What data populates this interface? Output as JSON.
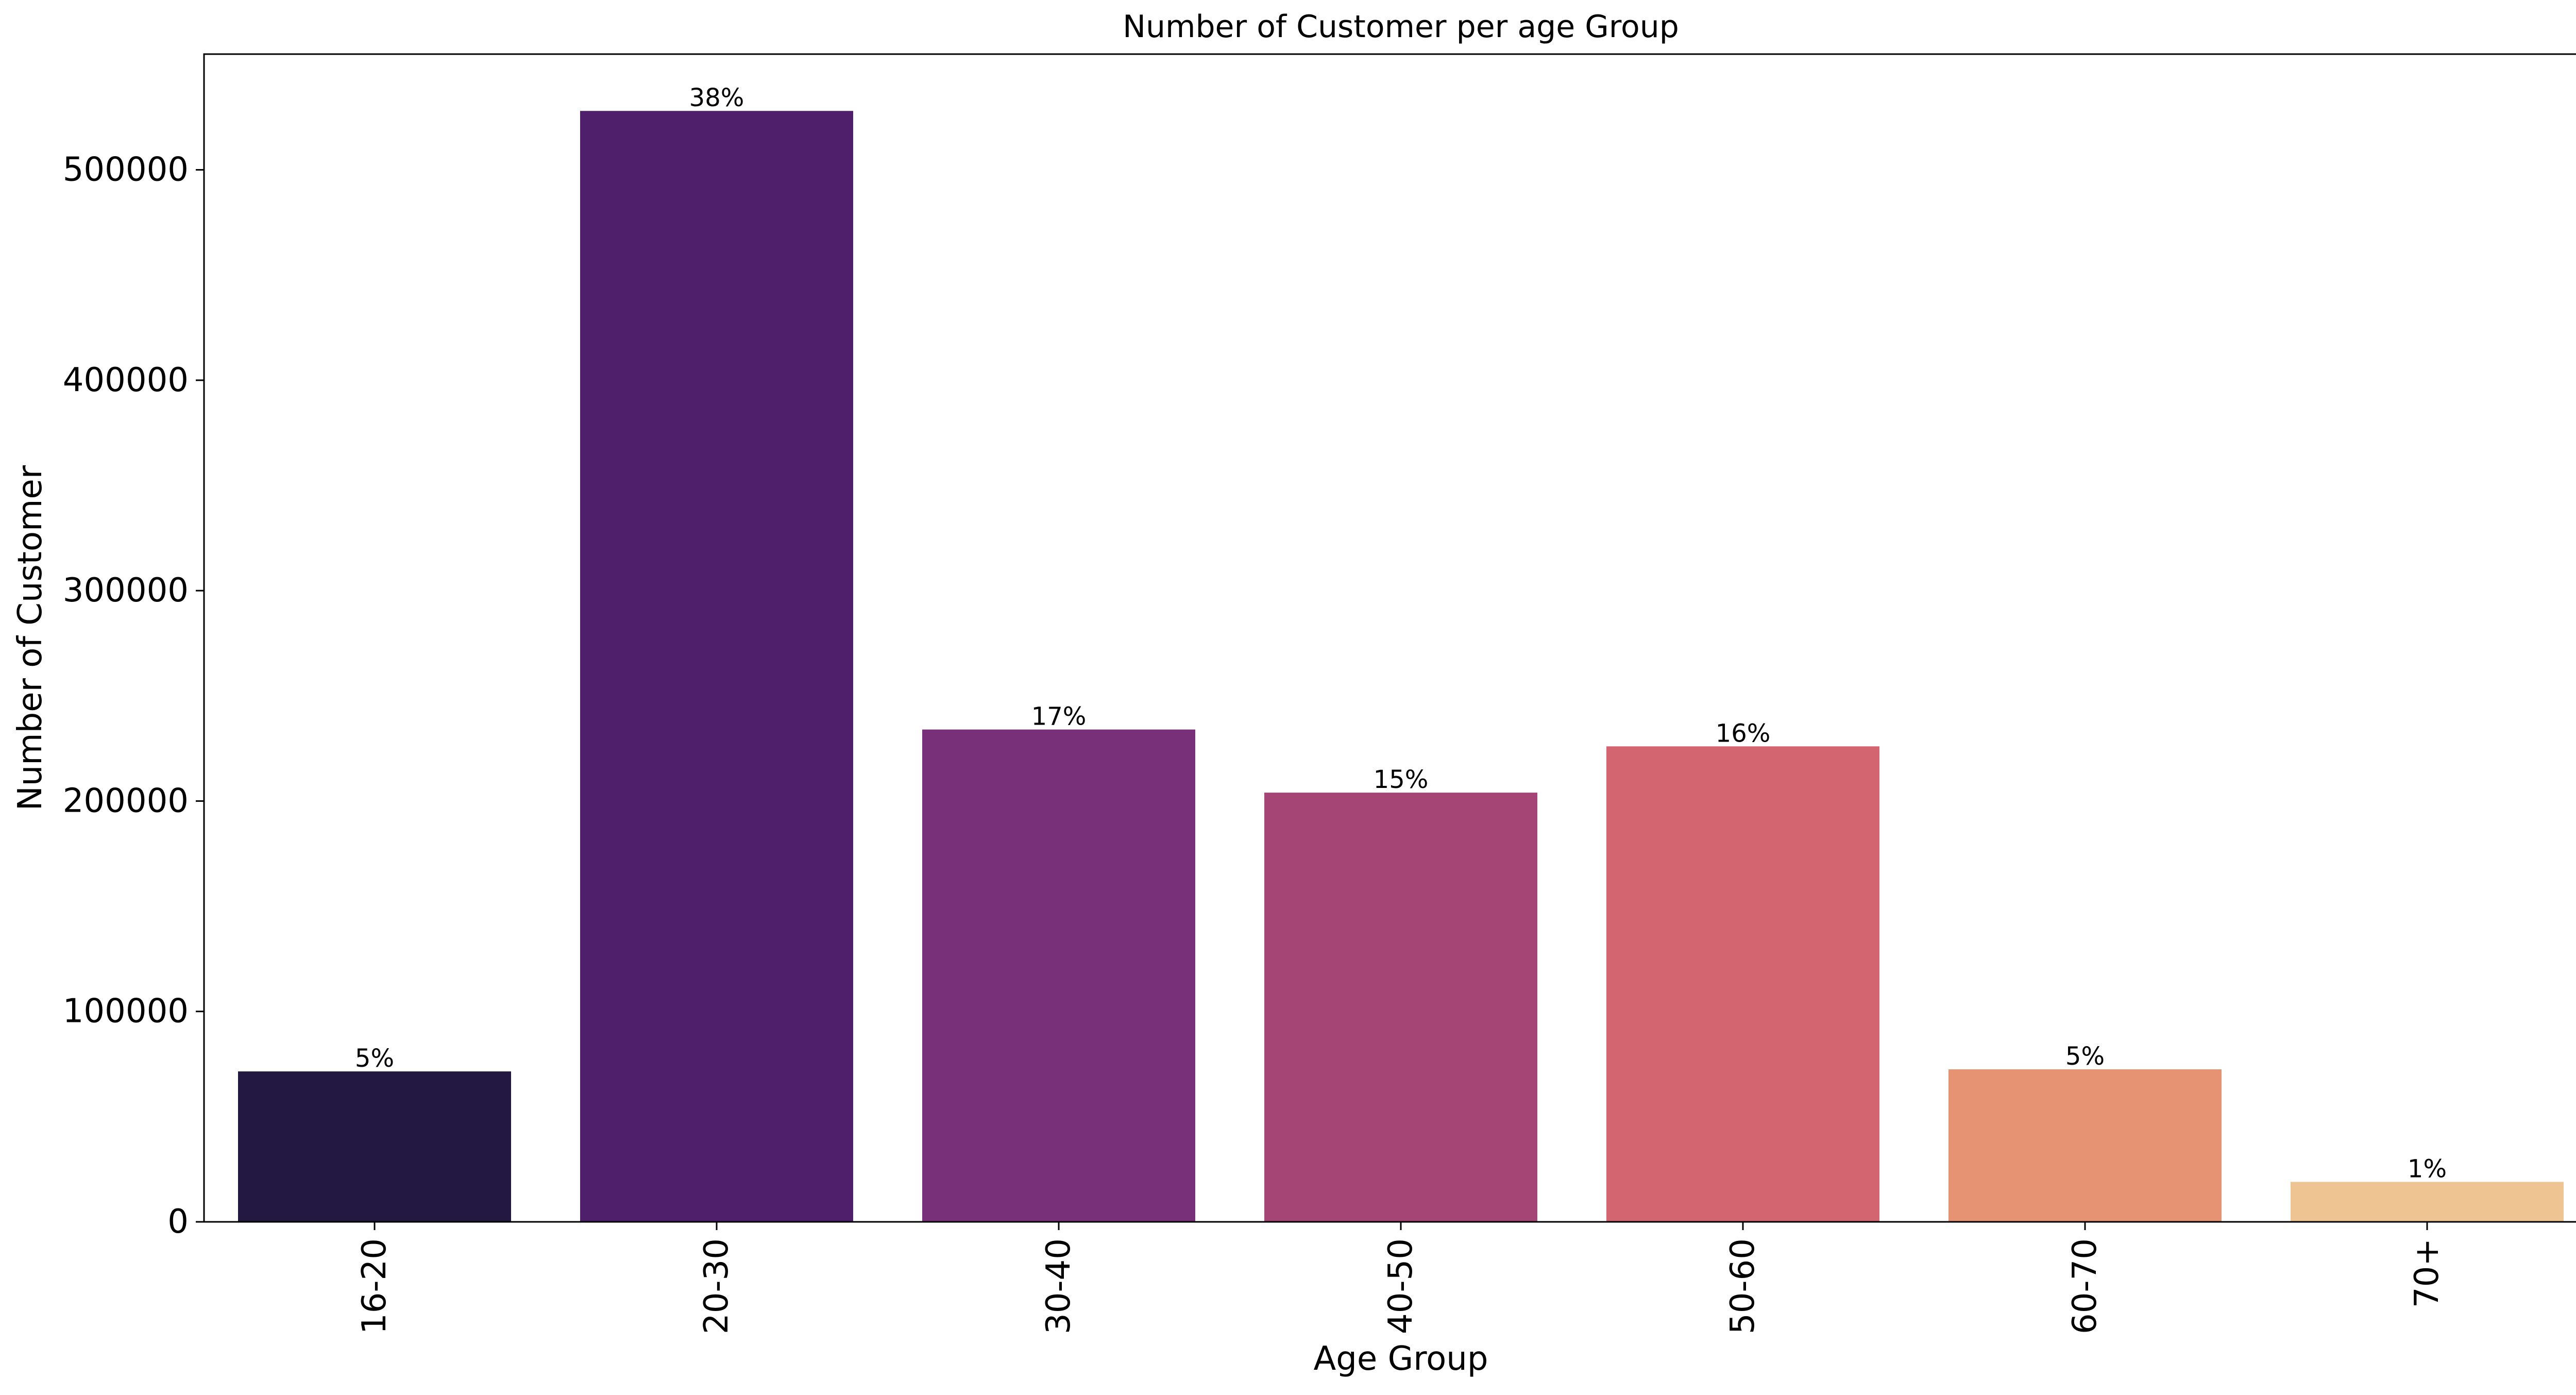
{
  "chart_data": {
    "type": "bar",
    "title": "Number of Customer per age Group",
    "xlabel": "Age Group",
    "ylabel": "Number of Customer",
    "categories": [
      "16-20",
      "20-30",
      "30-40",
      "40-50",
      "50-60",
      "60-70",
      "70+"
    ],
    "values": [
      71500,
      528000,
      234000,
      204000,
      226000,
      72500,
      19000
    ],
    "data_labels": [
      "5%",
      "38%",
      "17%",
      "15%",
      "16%",
      "5%",
      "1%"
    ],
    "colors": [
      "#221841",
      "#501f6c",
      "#783178",
      "#a54576",
      "#d36570",
      "#e69373",
      "#efc493"
    ],
    "ylim": [
      0,
      555000
    ],
    "yticks": [
      0,
      100000,
      200000,
      300000,
      400000,
      500000
    ],
    "ytick_labels": [
      "0",
      "100000",
      "200000",
      "300000",
      "400000",
      "500000"
    ],
    "grid": false,
    "legend": "none"
  }
}
